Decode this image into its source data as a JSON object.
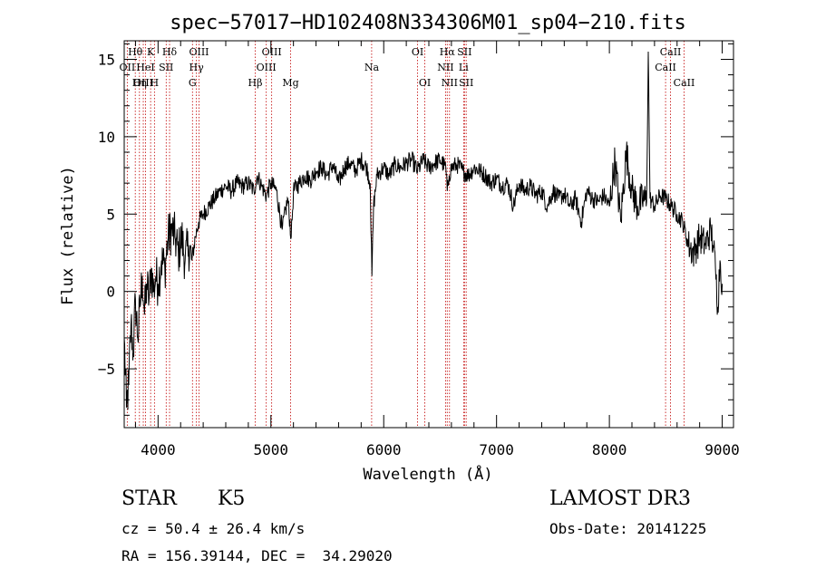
{
  "chart_data": {
    "type": "line",
    "title": "spec−57017−HD102408N334306M01_sp04−210.fits",
    "xlabel": "Wavelength (Å)",
    "ylabel": "Flux (relative)",
    "xlim": [
      3700,
      9100
    ],
    "ylim": [
      -8.8,
      16.2
    ],
    "x_ticks": [
      4000,
      5000,
      6000,
      7000,
      8000,
      9000
    ],
    "y_ticks": [
      -5,
      0,
      5,
      10,
      15
    ],
    "x_tick_labels": [
      "4000",
      "5000",
      "6000",
      "7000",
      "8000",
      "9000"
    ],
    "y_tick_labels": [
      "−5",
      "0",
      "5",
      "10",
      "15"
    ],
    "series": [
      {
        "name": "flux",
        "x": [
          3700,
          3720,
          3740,
          3760,
          3780,
          3800,
          3820,
          3840,
          3860,
          3880,
          3900,
          3920,
          3940,
          3960,
          3980,
          4000,
          4030,
          4060,
          4090,
          4120,
          4150,
          4180,
          4210,
          4240,
          4270,
          4300,
          4330,
          4360,
          4400,
          4450,
          4500,
          4550,
          4600,
          4650,
          4700,
          4750,
          4800,
          4850,
          4880,
          4920,
          4960,
          5000,
          5050,
          5100,
          5150,
          5180,
          5200,
          5250,
          5300,
          5350,
          5400,
          5450,
          5500,
          5550,
          5600,
          5650,
          5700,
          5750,
          5800,
          5850,
          5880,
          5895,
          5910,
          5940,
          6000,
          6050,
          6100,
          6150,
          6200,
          6250,
          6300,
          6350,
          6400,
          6450,
          6500,
          6550,
          6563,
          6580,
          6600,
          6650,
          6700,
          6750,
          6800,
          6850,
          6900,
          6950,
          7000,
          7050,
          7100,
          7150,
          7200,
          7250,
          7300,
          7350,
          7400,
          7450,
          7500,
          7550,
          7600,
          7650,
          7700,
          7750,
          7800,
          7850,
          7900,
          7950,
          8000,
          8050,
          8100,
          8150,
          8200,
          8250,
          8300,
          8330,
          8345,
          8360,
          8400,
          8450,
          8500,
          8550,
          8600,
          8650,
          8700,
          8750,
          8800,
          8850,
          8900,
          8920,
          8940,
          8960,
          8980,
          9000
        ],
        "y": [
          -3.0,
          -7.5,
          -6.0,
          -2.0,
          -4.0,
          -0.5,
          -3.0,
          -1.0,
          1.0,
          -1.5,
          0.5,
          -0.5,
          1.5,
          0.0,
          1.0,
          0.5,
          2.0,
          1.5,
          3.5,
          4.0,
          3.5,
          2.5,
          3.5,
          2.0,
          3.0,
          2.0,
          3.5,
          4.5,
          5.0,
          5.5,
          6.0,
          6.5,
          6.8,
          6.5,
          7.0,
          6.8,
          7.0,
          6.5,
          7.5,
          6.8,
          6.2,
          7.0,
          6.5,
          4.0,
          6.0,
          3.5,
          6.5,
          7.0,
          7.5,
          7.2,
          7.8,
          8.0,
          7.5,
          8.2,
          7.0,
          8.0,
          8.3,
          7.8,
          8.5,
          8.0,
          7.0,
          1.0,
          5.5,
          7.5,
          8.0,
          7.5,
          8.2,
          8.0,
          8.3,
          8.5,
          7.8,
          8.5,
          8.0,
          8.3,
          8.5,
          8.0,
          6.5,
          7.5,
          8.0,
          8.2,
          7.8,
          7.5,
          8.0,
          7.8,
          7.5,
          7.0,
          7.3,
          6.8,
          7.0,
          5.5,
          7.0,
          6.5,
          6.8,
          6.2,
          6.5,
          5.5,
          6.5,
          6.0,
          6.3,
          5.5,
          6.0,
          4.5,
          6.5,
          6.0,
          5.8,
          6.2,
          5.5,
          8.5,
          4.5,
          9.0,
          6.5,
          5.5,
          6.0,
          5.8,
          15.5,
          6.0,
          5.5,
          6.2,
          6.0,
          5.5,
          5.0,
          4.5,
          3.0,
          2.5,
          3.5,
          3.0,
          4.0,
          3.0,
          1.5,
          -1.0,
          2.0,
          0.5
        ]
      }
    ],
    "lines": [
      {
        "label": "Hθ",
        "x": 3798,
        "row": 1
      },
      {
        "label": "OII",
        "x": 3727,
        "row": 2
      },
      {
        "label": "K",
        "x": 3934,
        "row": 1
      },
      {
        "label": "OIII",
        "x": 3869,
        "row": 3
      },
      {
        "label": "HeI",
        "x": 3889,
        "row": 2
      },
      {
        "label": "Hη",
        "x": 3835,
        "row": 3
      },
      {
        "label": "SII",
        "x": 4072,
        "row": 2
      },
      {
        "label": "H",
        "x": 3968,
        "row": 3
      },
      {
        "label": "Hδ",
        "x": 4102,
        "row": 1
      },
      {
        "label": "OIII",
        "x": 4363,
        "row": 1
      },
      {
        "label": "Hγ",
        "x": 4340,
        "row": 2
      },
      {
        "label": "G",
        "x": 4305,
        "row": 3
      },
      {
        "label": "OIII",
        "x": 5007,
        "row": 1
      },
      {
        "label": "OIII",
        "x": 4959,
        "row": 2
      },
      {
        "label": "Hβ",
        "x": 4861,
        "row": 3
      },
      {
        "label": "Mg",
        "x": 5175,
        "row": 3
      },
      {
        "label": "Na",
        "x": 5893,
        "row": 2
      },
      {
        "label": "OI",
        "x": 6300,
        "row": 1
      },
      {
        "label": "OI",
        "x": 6364,
        "row": 3
      },
      {
        "label": "Hα",
        "x": 6563,
        "row": 1
      },
      {
        "label": "NII",
        "x": 6548,
        "row": 2
      },
      {
        "label": "NII",
        "x": 6583,
        "row": 3
      },
      {
        "label": "SII",
        "x": 6716,
        "row": 1
      },
      {
        "label": "Li",
        "x": 6708,
        "row": 2
      },
      {
        "label": "SII",
        "x": 6731,
        "row": 3
      },
      {
        "label": "CaII",
        "x": 8542,
        "row": 1
      },
      {
        "label": "CaII",
        "x": 8498,
        "row": 2
      },
      {
        "label": "CaII",
        "x": 8662,
        "row": 3
      }
    ],
    "line_color": "#c00000",
    "spectrum_color": "#000000",
    "background": "#ffffff"
  },
  "info": {
    "object_class": "STAR",
    "subclass": "K5",
    "survey": "LAMOST DR3",
    "cz_text": "cz = 50.4 ± 26.4 km/s",
    "obs_date": "Obs-Date: 20141225",
    "coords": "RA = 156.39144, DEC =  34.29020"
  }
}
